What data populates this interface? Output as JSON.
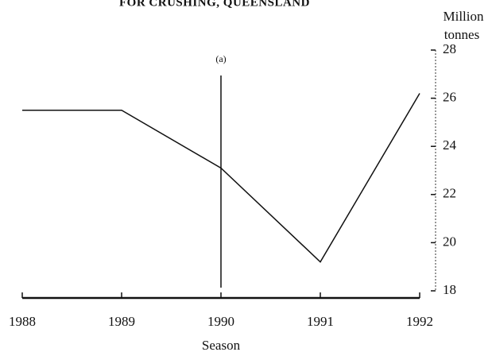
{
  "chart_data": {
    "type": "line",
    "title": "FOR CRUSHING, QUEENSLAND",
    "y_label": [
      "Million",
      "tonnes"
    ],
    "x_label": "Season",
    "x": [
      1988,
      1989,
      1990,
      1991,
      1992
    ],
    "values": [
      25.5,
      25.5,
      23.1,
      19.2,
      26.2
    ],
    "color": "#111111",
    "xlim": [
      1988,
      1992
    ],
    "xticks": [
      1988,
      1989,
      1990,
      1991,
      1992
    ],
    "ylim": [
      18,
      28
    ],
    "yticks": [
      18,
      20,
      22,
      24,
      26,
      28
    ],
    "y_axis_side": "right",
    "annotations": [
      {
        "text": "(a)",
        "x": 1990
      }
    ]
  }
}
